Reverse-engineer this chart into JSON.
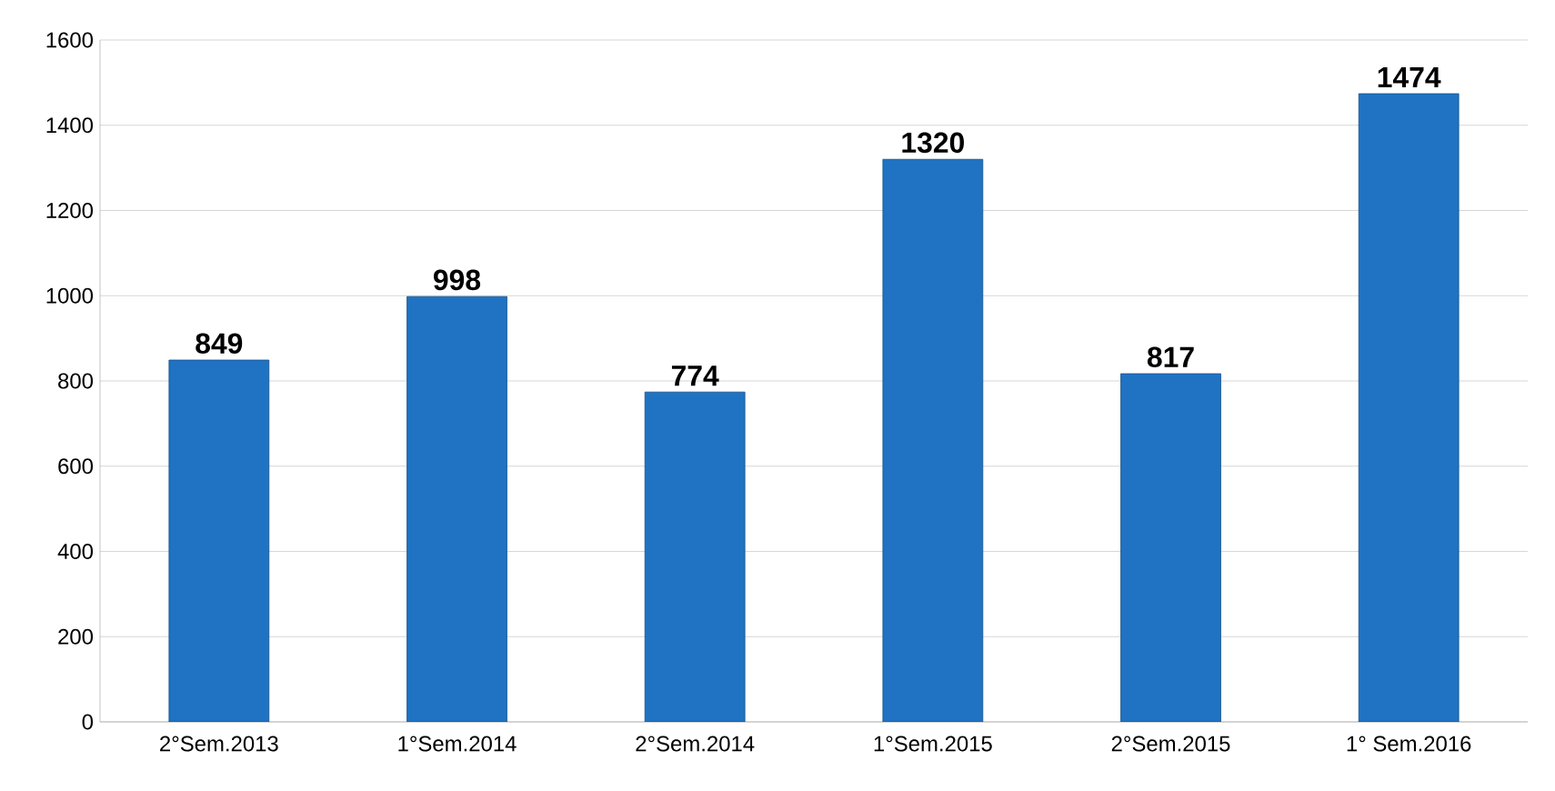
{
  "chart_data": {
    "type": "bar",
    "categories": [
      "2°Sem.2013",
      "1°Sem.2014",
      "2°Sem.2014",
      "1°Sem.2015",
      "2°Sem.2015",
      "1° Sem.2016"
    ],
    "values": [
      849,
      998,
      774,
      1320,
      817,
      1474
    ],
    "color": "#1f73c2",
    "ylim": [
      0,
      1600
    ],
    "yticks": [
      0,
      200,
      400,
      600,
      800,
      1000,
      1200,
      1400,
      1600
    ],
    "grid": "y",
    "data_labels": true
  }
}
